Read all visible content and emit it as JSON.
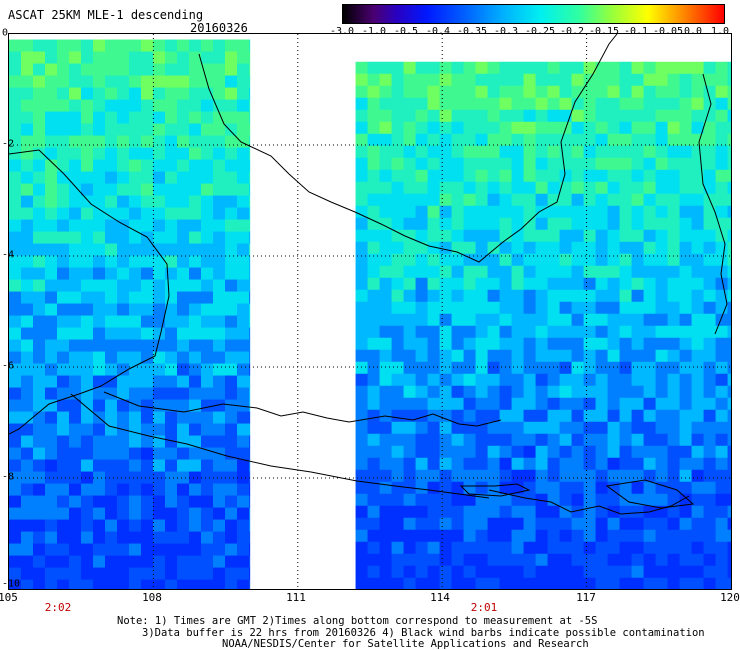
{
  "header": {
    "title": "ASCAT 25KM MLE-1 descending",
    "date": "20160326"
  },
  "colorbar": {
    "ticks": [
      "-3.0",
      "-1.0",
      "-0.5",
      "-0.4",
      "-0.35",
      "-0.3",
      "-0.25",
      "-0.2",
      "-0.15",
      "-0.1",
      "-0.05",
      "0.0",
      "1.0"
    ],
    "colors": [
      "#000000",
      "#2a00c0",
      "#0018ff",
      "#0060ff",
      "#00b0ff",
      "#00f0f0",
      "#30ffa0",
      "#90ff40",
      "#ffff00",
      "#ff8000",
      "#ff0000"
    ]
  },
  "axes": {
    "lon_labels": [
      "105",
      "108",
      "111",
      "114",
      "117",
      "120"
    ],
    "lat_labels": [
      "0",
      "-2",
      "-4",
      "-6",
      "-8",
      "-10"
    ]
  },
  "pass_times": [
    "2:02",
    "2:01"
  ],
  "notes": {
    "line1": "Note: 1) Times are GMT 2)Times along bottom correspond to measurement at -5S",
    "line2": "3)Data buffer is 22 hrs from 20160326 4) Black wind barbs indicate possible contamination",
    "line3": "NOAA/NESDIS/Center for Satellite Applications and Research"
  },
  "map": {
    "lon_range": [
      105,
      120
    ],
    "lat_range": [
      0,
      -10
    ],
    "swaths": [
      {
        "name": "west",
        "lon": [
          105,
          110
        ],
        "lat": [
          -0.1,
          -10
        ]
      },
      {
        "name": "east",
        "lon": [
          112.2,
          120
        ],
        "lat": [
          -0.5,
          -10
        ]
      }
    ]
  }
}
